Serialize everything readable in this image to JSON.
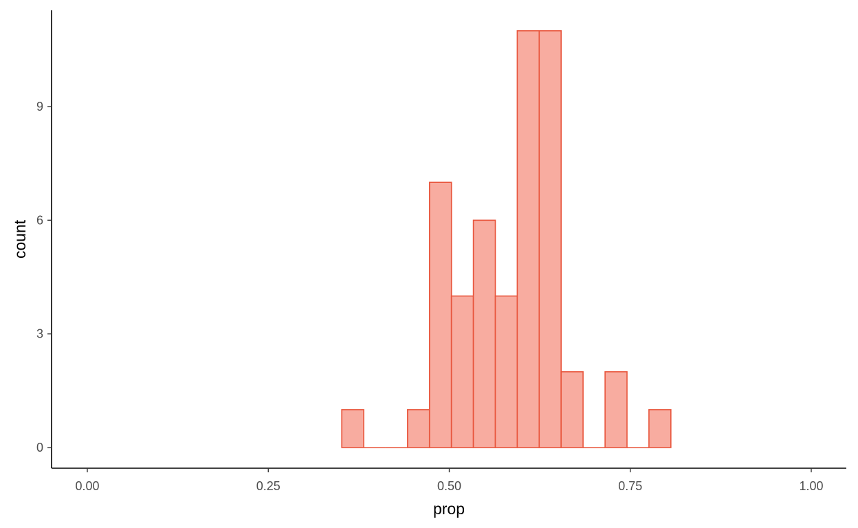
{
  "chart_data": {
    "type": "bar",
    "subtype": "histogram",
    "title": "",
    "xlabel": "prop",
    "ylabel": "count",
    "xlim": [
      0.0,
      1.0
    ],
    "ylim": [
      0,
      11
    ],
    "x_ticks": [
      {
        "value": 0.0,
        "label": "0.00"
      },
      {
        "value": 0.25,
        "label": "0.25"
      },
      {
        "value": 0.5,
        "label": "0.50"
      },
      {
        "value": 0.75,
        "label": "0.75"
      },
      {
        "value": 1.0,
        "label": "1.00"
      }
    ],
    "y_ticks": [
      {
        "value": 0,
        "label": "0"
      },
      {
        "value": 3,
        "label": "3"
      },
      {
        "value": 6,
        "label": "6"
      },
      {
        "value": 9,
        "label": "9"
      }
    ],
    "bins": [
      {
        "x0": 0.3515,
        "x1": 0.3818,
        "count": 1
      },
      {
        "x0": 0.3818,
        "x1": 0.4121,
        "count": 0
      },
      {
        "x0": 0.4121,
        "x1": 0.4424,
        "count": 0
      },
      {
        "x0": 0.4424,
        "x1": 0.4727,
        "count": 1
      },
      {
        "x0": 0.4727,
        "x1": 0.503,
        "count": 7
      },
      {
        "x0": 0.503,
        "x1": 0.5333,
        "count": 4
      },
      {
        "x0": 0.5333,
        "x1": 0.5636,
        "count": 6
      },
      {
        "x0": 0.5636,
        "x1": 0.5939,
        "count": 4
      },
      {
        "x0": 0.5939,
        "x1": 0.6242,
        "count": 11
      },
      {
        "x0": 0.6242,
        "x1": 0.6545,
        "count": 11
      },
      {
        "x0": 0.6545,
        "x1": 0.6848,
        "count": 2
      },
      {
        "x0": 0.6848,
        "x1": 0.7152,
        "count": 0
      },
      {
        "x0": 0.7152,
        "x1": 0.7455,
        "count": 2
      },
      {
        "x0": 0.7455,
        "x1": 0.7758,
        "count": 0
      },
      {
        "x0": 0.7758,
        "x1": 0.8061,
        "count": 1
      }
    ],
    "grid": false,
    "legend": "none",
    "colors": {
      "bar_fill": "#f8aca0",
      "bar_stroke": "#e8553c",
      "axis": "#000000",
      "tick_label": "#4d4d4d"
    }
  }
}
